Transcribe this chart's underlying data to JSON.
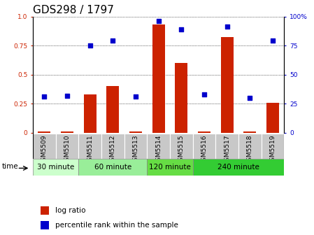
{
  "title": "GDS298 / 1797",
  "samples": [
    "GSM5509",
    "GSM5510",
    "GSM5511",
    "GSM5512",
    "GSM5513",
    "GSM5514",
    "GSM5515",
    "GSM5516",
    "GSM5517",
    "GSM5518",
    "GSM5519"
  ],
  "log_ratio": [
    0.01,
    0.01,
    0.33,
    0.4,
    0.01,
    0.93,
    0.6,
    0.01,
    0.82,
    0.01,
    0.26
  ],
  "percentile": [
    0.31,
    0.32,
    0.75,
    0.79,
    0.31,
    0.96,
    0.89,
    0.33,
    0.91,
    0.3,
    0.79
  ],
  "bar_color": "#cc2200",
  "dot_color": "#0000cc",
  "groups": [
    {
      "label": "30 minute",
      "start": 0,
      "end": 1,
      "color": "#ccffcc"
    },
    {
      "label": "60 minute",
      "start": 2,
      "end": 4,
      "color": "#99ee99"
    },
    {
      "label": "120 minute",
      "start": 5,
      "end": 6,
      "color": "#66dd44"
    },
    {
      "label": "240 minute",
      "start": 7,
      "end": 10,
      "color": "#33cc33"
    }
  ],
  "ylim": [
    0,
    1
  ],
  "yticks_left": [
    0,
    0.25,
    0.5,
    0.75,
    1.0
  ],
  "yticks_right": [
    0,
    25,
    50,
    75,
    100
  ],
  "ylabel_left_color": "#cc2200",
  "ylabel_right_color": "#0000cc",
  "grid_color": "#000000",
  "bg_plot": "#ffffff",
  "bg_sample": "#c8c8c8",
  "group_colors": [
    "#ccffcc",
    "#99ee99",
    "#66dd44",
    "#33cc33"
  ],
  "title_fontsize": 11,
  "tick_fontsize": 6.5,
  "group_fontsize": 7.5,
  "legend_fontsize": 7.5
}
